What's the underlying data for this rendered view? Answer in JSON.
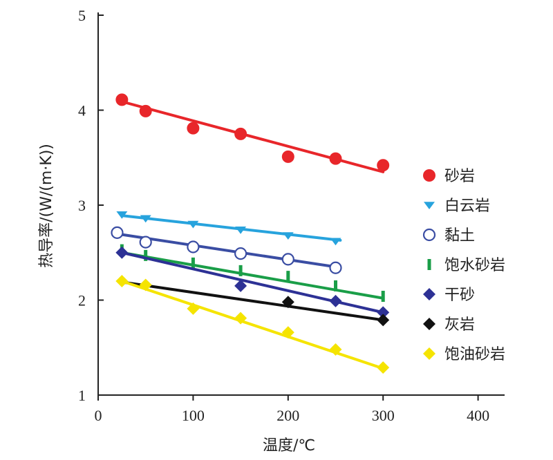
{
  "chart_data": {
    "type": "scatter",
    "xlabel": "温度/℃",
    "ylabel": "热导率/(W/(m·K))",
    "xlim": [
      0,
      430
    ],
    "ylim": [
      1,
      5
    ],
    "xticks": [
      0,
      100,
      200,
      300,
      400
    ],
    "yticks": [
      1,
      2,
      3,
      4,
      5
    ],
    "grid": false,
    "legend_position": "right",
    "series": [
      {
        "name": "砂岩",
        "color": "#e8262a",
        "marker": "circle",
        "points": [
          [
            25,
            4.11
          ],
          [
            50,
            3.99
          ],
          [
            100,
            3.81
          ],
          [
            150,
            3.75
          ],
          [
            200,
            3.51
          ],
          [
            250,
            3.49
          ],
          [
            300,
            3.42
          ]
        ],
        "fit": [
          [
            25,
            4.09
          ],
          [
            300,
            3.35
          ]
        ]
      },
      {
        "name": "白云岩",
        "color": "#27a3dd",
        "marker": "triangle-down",
        "points": [
          [
            25,
            2.9
          ],
          [
            50,
            2.86
          ],
          [
            100,
            2.8
          ],
          [
            150,
            2.74
          ],
          [
            200,
            2.68
          ],
          [
            250,
            2.62
          ]
        ],
        "fit": [
          [
            25,
            2.89
          ],
          [
            255,
            2.63
          ]
        ]
      },
      {
        "name": "黏土",
        "color": "#3a4da3",
        "marker": "circle-open",
        "points": [
          [
            20,
            2.71
          ],
          [
            50,
            2.61
          ],
          [
            100,
            2.56
          ],
          [
            150,
            2.49
          ],
          [
            200,
            2.43
          ],
          [
            250,
            2.34
          ]
        ],
        "fit": [
          [
            25,
            2.69
          ],
          [
            250,
            2.35
          ]
        ]
      },
      {
        "name": "饱水砂岩",
        "color": "#1a9e48",
        "marker": "dash",
        "points": [
          [
            25,
            2.53
          ],
          [
            50,
            2.47
          ],
          [
            100,
            2.39
          ],
          [
            150,
            2.31
          ],
          [
            200,
            2.25
          ],
          [
            250,
            2.15
          ],
          [
            300,
            2.04
          ]
        ],
        "fit": [
          [
            25,
            2.5
          ],
          [
            300,
            2.02
          ]
        ]
      },
      {
        "name": "干砂",
        "color": "#2d3195",
        "marker": "diamond",
        "points": [
          [
            25,
            2.5
          ],
          [
            150,
            2.15
          ],
          [
            250,
            1.99
          ],
          [
            300,
            1.87
          ]
        ],
        "fit": [
          [
            25,
            2.5
          ],
          [
            300,
            1.87
          ]
        ]
      },
      {
        "name": "灰岩",
        "color": "#111111",
        "marker": "diamond",
        "points": [
          [
            200,
            1.98
          ],
          [
            300,
            1.79
          ]
        ],
        "fit": [
          [
            25,
            2.19
          ],
          [
            300,
            1.79
          ]
        ]
      },
      {
        "name": "饱油砂岩",
        "color": "#f5e400",
        "marker": "diamond",
        "points": [
          [
            25,
            2.2
          ],
          [
            50,
            2.16
          ],
          [
            100,
            1.91
          ],
          [
            150,
            1.81
          ],
          [
            200,
            1.66
          ],
          [
            250,
            1.48
          ],
          [
            300,
            1.29
          ]
        ],
        "fit": [
          [
            25,
            2.2
          ],
          [
            300,
            1.28
          ]
        ]
      }
    ]
  }
}
